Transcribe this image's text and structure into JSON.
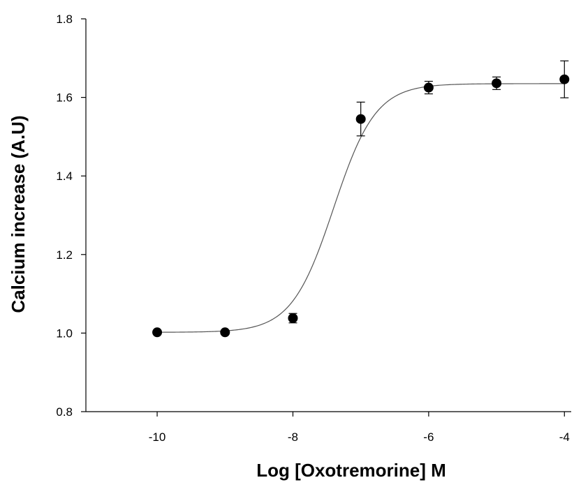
{
  "chart_data": {
    "type": "scatter",
    "title": "",
    "xlabel": "Log [Oxotremorine] M",
    "ylabel": "Calcium increase (A.U)",
    "xlim": [
      -11.05,
      -3.9
    ],
    "ylim": [
      0.8,
      1.8
    ],
    "xticks": [
      -10,
      -8,
      -6,
      -4
    ],
    "yticks": [
      0.8,
      1.0,
      1.2,
      1.4,
      1.6,
      1.8
    ],
    "xtick_labels": [
      "-10",
      "-8",
      "-6",
      "-4"
    ],
    "ytick_labels": [
      "0.8",
      "1.0",
      "1.2",
      "1.4",
      "1.6",
      "1.8"
    ],
    "grid": false,
    "series": [
      {
        "x": [
          -10,
          -9,
          -8,
          -7,
          -6,
          -5,
          -4
        ],
        "y": [
          1.002,
          1.002,
          1.038,
          1.545,
          1.625,
          1.636,
          1.646
        ],
        "error": [
          0,
          0,
          0.012,
          0.043,
          0.016,
          0.016,
          0.047
        ]
      }
    ],
    "fit_curve": {
      "model": "sigmoid",
      "bottom": 1.002,
      "top": 1.635,
      "logEC50": -7.4,
      "hill": 1.4
    }
  }
}
